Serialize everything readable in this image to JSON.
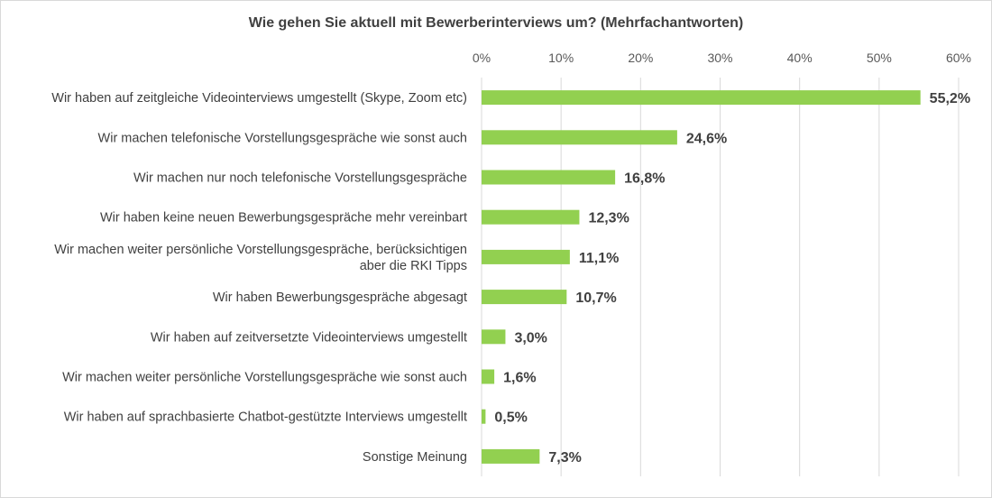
{
  "chart_data": {
    "type": "bar",
    "orientation": "horizontal",
    "title": "Wie gehen Sie aktuell mit Bewerberinterviews um? (Mehrfachantworten)",
    "categories": [
      [
        "Wir haben auf zeitgleiche Videointerviews umgestellt (Skype, Zoom etc)"
      ],
      [
        "Wir machen telefonische Vorstellungsgespräche wie sonst auch"
      ],
      [
        "Wir machen nur noch telefonische Vorstellungsgespräche"
      ],
      [
        "Wir haben keine neuen Bewerbungsgespräche mehr vereinbart"
      ],
      [
        "Wir machen weiter persönliche Vorstellungsgespräche, berücksichtigen",
        "aber die RKI Tipps"
      ],
      [
        "Wir haben Bewerbungsgespräche abgesagt"
      ],
      [
        "Wir haben auf zeitversetzte Videointerviews umgestellt"
      ],
      [
        "Wir machen weiter persönliche Vorstellungsgespräche wie sonst auch"
      ],
      [
        "Wir haben auf sprachbasierte Chatbot-gestützte Interviews umgestellt"
      ],
      [
        "Sonstige Meinung"
      ]
    ],
    "values": [
      55.2,
      24.6,
      16.8,
      12.3,
      11.1,
      10.7,
      3.0,
      1.6,
      0.5,
      7.3
    ],
    "value_labels": [
      "55,2%",
      "24,6%",
      "16,8%",
      "12,3%",
      "11,1%",
      "10,7%",
      "3,0%",
      "1,6%",
      "0,5%",
      "7,3%"
    ],
    "xlim": [
      0,
      60
    ],
    "x_ticks": [
      0,
      10,
      20,
      30,
      40,
      50,
      60
    ],
    "x_tick_labels": [
      "0%",
      "10%",
      "20%",
      "30%",
      "40%",
      "50%",
      "60%"
    ],
    "x_axis_position": "top",
    "grid": true,
    "bar_color": "#92d050",
    "grid_color": "#d9d9d9"
  }
}
